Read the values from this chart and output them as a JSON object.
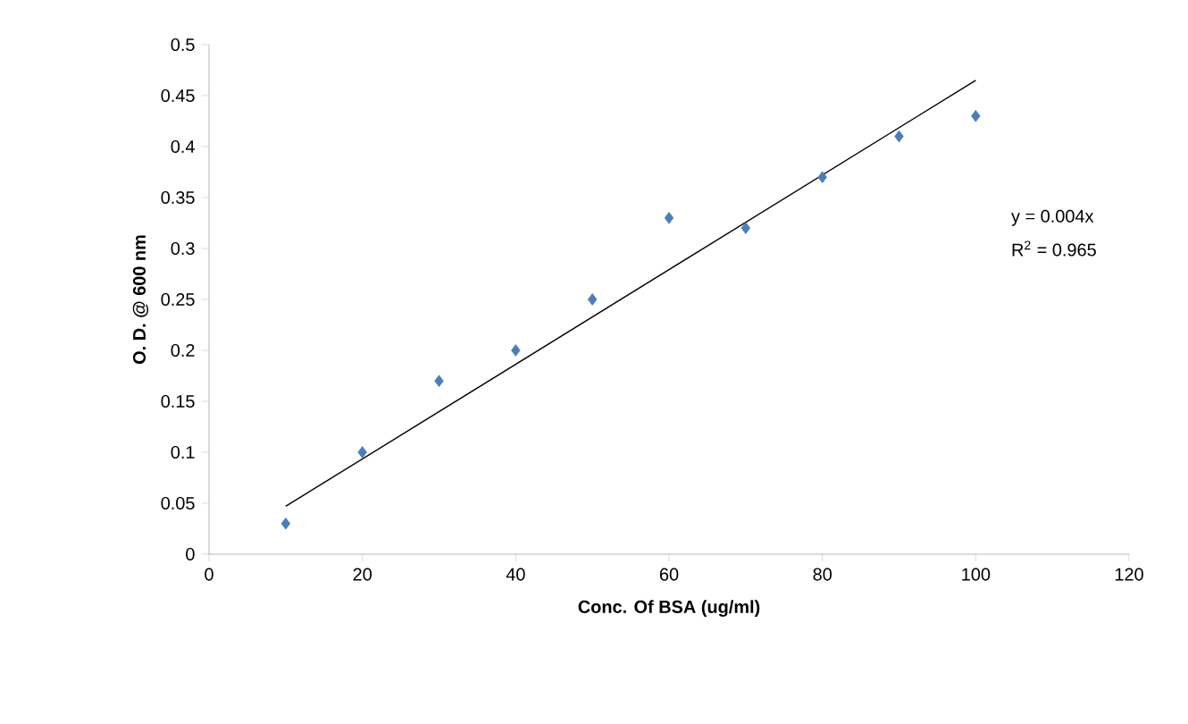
{
  "chart_data": {
    "type": "scatter",
    "xlabel": "Conc. Of BSA (ug/ml)",
    "ylabel": "O. D. @ 600 nm",
    "xlim": [
      0,
      120
    ],
    "xticks": [
      0,
      20,
      40,
      60,
      80,
      100,
      120
    ],
    "ylim": [
      0,
      0.5
    ],
    "yticks": [
      0,
      0.05,
      0.1,
      0.15,
      0.2,
      0.25,
      0.3,
      0.35,
      0.4,
      0.45,
      0.5
    ],
    "grid": false,
    "series": [
      {
        "marker": "diamond",
        "color": "#4a7ebb",
        "x": [
          10,
          20,
          30,
          40,
          50,
          60,
          70,
          80,
          90,
          100
        ],
        "values": [
          0.03,
          0.1,
          0.17,
          0.2,
          0.25,
          0.33,
          0.32,
          0.37,
          0.41,
          0.43
        ]
      },
      {
        "type": "line",
        "marker": "none",
        "color": "#000000",
        "line_style": "solid",
        "x": [
          10,
          100
        ],
        "values": [
          0.047,
          0.465
        ]
      }
    ],
    "annotations": [
      "y = 0.004x",
      "R$^{2}$ = 0.965"
    ]
  }
}
